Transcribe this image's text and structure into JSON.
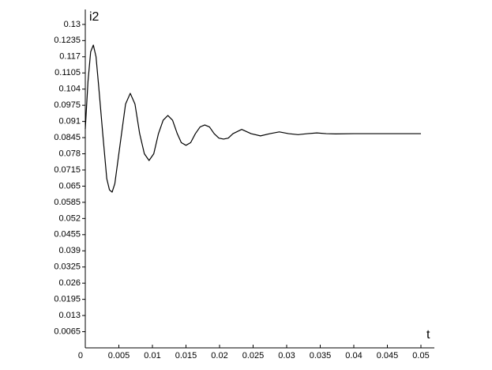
{
  "chart_data": {
    "type": "line",
    "x_label": "t",
    "y_label": "i2",
    "xlim": [
      0,
      0.052
    ],
    "ylim": [
      0,
      0.136
    ],
    "xticks": [
      0,
      0.005,
      0.01,
      0.015,
      0.02,
      0.025,
      0.03,
      0.035,
      0.04,
      0.045,
      0.05
    ],
    "yticks": [
      0.0065,
      0.013,
      0.0195,
      0.026,
      0.0325,
      0.039,
      0.0455,
      0.052,
      0.0585,
      0.065,
      0.0715,
      0.078,
      0.0845,
      0.091,
      0.0975,
      0.104,
      0.1105,
      0.117,
      0.1235,
      0.13
    ],
    "color": "#000000",
    "x": [
      0,
      0.0004,
      0.0008,
      0.0012,
      0.0016,
      0.002,
      0.0026,
      0.0032,
      0.0036,
      0.004,
      0.0044,
      0.0054,
      0.006,
      0.0067,
      0.0074,
      0.0081,
      0.0088,
      0.0095,
      0.0102,
      0.0109,
      0.0116,
      0.0123,
      0.013,
      0.0137,
      0.0143,
      0.015,
      0.0157,
      0.0164,
      0.0171,
      0.0178,
      0.0185,
      0.0192,
      0.0199,
      0.0206,
      0.0213,
      0.022,
      0.0233,
      0.0247,
      0.0261,
      0.0275,
      0.0289,
      0.0303,
      0.0317,
      0.0331,
      0.0345,
      0.0359,
      0.0373,
      0.04,
      0.045,
      0.05
    ],
    "values": [
      0.088,
      0.107,
      0.119,
      0.1217,
      0.117,
      0.105,
      0.0861,
      0.068,
      0.0635,
      0.0626,
      0.066,
      0.0861,
      0.098,
      0.1023,
      0.098,
      0.0861,
      0.078,
      0.0753,
      0.078,
      0.0861,
      0.0915,
      0.0934,
      0.0915,
      0.0861,
      0.0825,
      0.0814,
      0.0825,
      0.0861,
      0.0888,
      0.0896,
      0.0888,
      0.0861,
      0.0843,
      0.0839,
      0.0843,
      0.0861,
      0.0878,
      0.0861,
      0.0852,
      0.0861,
      0.0868,
      0.0861,
      0.0857,
      0.0861,
      0.0864,
      0.0861,
      0.086,
      0.0861,
      0.0861,
      0.0861
    ]
  }
}
